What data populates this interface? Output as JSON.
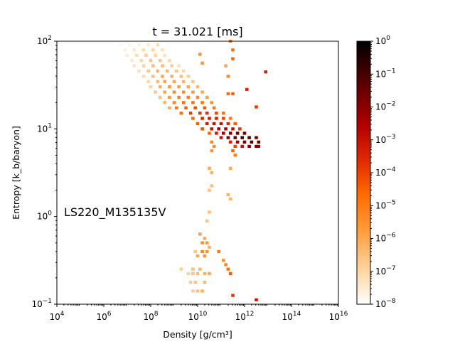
{
  "chart_data": {
    "type": "heatmap",
    "title": "t = 31.021 [ms]",
    "xlabel": "Density [g/cm³]",
    "ylabel": "Entropy [k_b/baryon]",
    "xscale": "log",
    "yscale": "log",
    "xlim_log10": [
      4,
      16
    ],
    "ylim_log10": [
      -1,
      2
    ],
    "x_ticks": [
      {
        "exp": 4,
        "label": "4"
      },
      {
        "exp": 6,
        "label": "6"
      },
      {
        "exp": 8,
        "label": "8"
      },
      {
        "exp": 10,
        "label": "10"
      },
      {
        "exp": 12,
        "label": "12"
      },
      {
        "exp": 14,
        "label": "14"
      },
      {
        "exp": 16,
        "label": "16"
      }
    ],
    "y_ticks": [
      {
        "exp": -1,
        "label": "−1"
      },
      {
        "exp": 0,
        "label": "0"
      },
      {
        "exp": 1,
        "label": "1"
      },
      {
        "exp": 2,
        "label": "2"
      }
    ],
    "annotation": "LS220_M135135V",
    "colorbar": {
      "scale": "log",
      "range_log10": [
        -8,
        0
      ],
      "colormap": [
        "#ffffff",
        "#ffd8a8",
        "#ff9d3a",
        "#ff6a00",
        "#e02800",
        "#b30000",
        "#5a0000",
        "#000000"
      ],
      "ticks": [
        {
          "exp": 0,
          "label": "0"
        },
        {
          "exp": -1,
          "label": "−1"
        },
        {
          "exp": -2,
          "label": "−2"
        },
        {
          "exp": -3,
          "label": "−3"
        },
        {
          "exp": -4,
          "label": "−4"
        },
        {
          "exp": -5,
          "label": "−5"
        },
        {
          "exp": -6,
          "label": "−6"
        },
        {
          "exp": -7,
          "label": "−7"
        },
        {
          "exp": -8,
          "label": "−8"
        }
      ]
    },
    "cells_note": "each cell: [log10 density, log10 entropy, log10 mass fraction]",
    "cells": [
      [
        6.7,
        1.96,
        -7.8
      ],
      [
        7.1,
        1.96,
        -7.7
      ],
      [
        7.5,
        1.96,
        -7.6
      ],
      [
        7.9,
        1.96,
        -7.5
      ],
      [
        8.3,
        1.96,
        -7.1
      ],
      [
        6.9,
        1.9,
        -7.6
      ],
      [
        7.3,
        1.9,
        -7.4
      ],
      [
        7.7,
        1.9,
        -7.1
      ],
      [
        8.1,
        1.9,
        -6.9
      ],
      [
        8.5,
        1.9,
        -7.2
      ],
      [
        7.0,
        1.84,
        -7.5
      ],
      [
        7.4,
        1.84,
        -7.1
      ],
      [
        7.8,
        1.84,
        -6.8
      ],
      [
        8.2,
        1.84,
        -6.9
      ],
      [
        8.6,
        1.84,
        -7.3
      ],
      [
        7.2,
        1.78,
        -7.4
      ],
      [
        7.6,
        1.78,
        -7.0
      ],
      [
        8.0,
        1.78,
        -6.6
      ],
      [
        8.4,
        1.78,
        -6.6
      ],
      [
        8.8,
        1.78,
        -7.0
      ],
      [
        7.3,
        1.72,
        -7.3
      ],
      [
        7.7,
        1.72,
        -6.9
      ],
      [
        8.1,
        1.72,
        -6.4
      ],
      [
        8.5,
        1.72,
        -6.4
      ],
      [
        8.9,
        1.72,
        -6.8
      ],
      [
        9.2,
        1.72,
        -7.2
      ],
      [
        7.5,
        1.66,
        -7.2
      ],
      [
        7.9,
        1.66,
        -6.7
      ],
      [
        8.3,
        1.66,
        -6.2
      ],
      [
        8.7,
        1.66,
        -6.3
      ],
      [
        9.1,
        1.66,
        -6.6
      ],
      [
        9.4,
        1.66,
        -7.0
      ],
      [
        7.7,
        1.6,
        -7.1
      ],
      [
        8.1,
        1.6,
        -6.5
      ],
      [
        8.5,
        1.6,
        -6.0
      ],
      [
        8.9,
        1.6,
        -6.1
      ],
      [
        9.3,
        1.6,
        -6.4
      ],
      [
        9.6,
        1.6,
        -6.8
      ],
      [
        7.9,
        1.54,
        -7.0
      ],
      [
        8.3,
        1.54,
        -6.3
      ],
      [
        8.6,
        1.54,
        -5.8
      ],
      [
        9.0,
        1.54,
        -5.9
      ],
      [
        9.4,
        1.54,
        -6.2
      ],
      [
        9.8,
        1.54,
        -6.6
      ],
      [
        8.0,
        1.48,
        -6.9
      ],
      [
        8.4,
        1.48,
        -6.1
      ],
      [
        8.8,
        1.48,
        -5.6
      ],
      [
        9.2,
        1.48,
        -5.7
      ],
      [
        9.6,
        1.48,
        -6.0
      ],
      [
        10.0,
        1.48,
        -6.3
      ],
      [
        8.2,
        1.42,
        -6.7
      ],
      [
        8.6,
        1.42,
        -5.9
      ],
      [
        9.0,
        1.42,
        -5.4
      ],
      [
        9.4,
        1.42,
        -5.4
      ],
      [
        9.8,
        1.42,
        -5.7
      ],
      [
        10.2,
        1.42,
        -6.0
      ],
      [
        8.4,
        1.36,
        -6.5
      ],
      [
        8.8,
        1.36,
        -5.6
      ],
      [
        9.2,
        1.36,
        -5.1
      ],
      [
        9.6,
        1.36,
        -5.1
      ],
      [
        10.0,
        1.36,
        -5.3
      ],
      [
        10.4,
        1.36,
        -5.8
      ],
      [
        8.6,
        1.3,
        -6.3
      ],
      [
        9.0,
        1.3,
        -5.3
      ],
      [
        9.4,
        1.3,
        -4.8
      ],
      [
        9.8,
        1.3,
        -4.7
      ],
      [
        10.2,
        1.3,
        -4.9
      ],
      [
        10.6,
        1.3,
        -5.4
      ],
      [
        8.8,
        1.24,
        -6.1
      ],
      [
        9.1,
        1.24,
        -5.0
      ],
      [
        9.5,
        1.24,
        -4.5
      ],
      [
        9.9,
        1.24,
        -4.2
      ],
      [
        10.3,
        1.24,
        -4.4
      ],
      [
        10.7,
        1.24,
        -5.0
      ],
      [
        9.3,
        1.18,
        -4.8
      ],
      [
        9.7,
        1.18,
        -4.0
      ],
      [
        10.1,
        1.18,
        -3.8
      ],
      [
        10.4,
        1.18,
        -3.7
      ],
      [
        10.8,
        1.18,
        -4.2
      ],
      [
        11.1,
        1.18,
        -4.9
      ],
      [
        9.8,
        1.12,
        -4.6
      ],
      [
        10.2,
        1.12,
        -3.5
      ],
      [
        10.5,
        1.12,
        -3.3
      ],
      [
        10.8,
        1.12,
        -3.4
      ],
      [
        11.1,
        1.12,
        -4.0
      ],
      [
        11.4,
        1.12,
        -5.0
      ],
      [
        10.0,
        1.06,
        -4.4
      ],
      [
        10.4,
        1.06,
        -3.2
      ],
      [
        10.7,
        1.06,
        -2.9
      ],
      [
        11.0,
        1.06,
        -3.0
      ],
      [
        11.3,
        1.06,
        -3.6
      ],
      [
        11.6,
        1.06,
        -4.4
      ],
      [
        10.2,
        1.0,
        -4.2
      ],
      [
        10.6,
        1.0,
        -3.0
      ],
      [
        10.9,
        1.0,
        -2.5
      ],
      [
        11.2,
        1.0,
        -2.4
      ],
      [
        11.5,
        1.0,
        -3.0
      ],
      [
        11.8,
        1.0,
        -3.8
      ],
      [
        10.5,
        0.95,
        -4.6
      ],
      [
        10.8,
        0.95,
        -3.2
      ],
      [
        11.1,
        0.95,
        -2.2
      ],
      [
        11.4,
        0.95,
        -1.7
      ],
      [
        11.7,
        0.95,
        -1.4
      ],
      [
        12.0,
        0.95,
        -1.6
      ],
      [
        11.0,
        0.9,
        -3.0
      ],
      [
        11.3,
        0.9,
        -1.8
      ],
      [
        11.6,
        0.9,
        -1.2
      ],
      [
        11.9,
        0.9,
        -0.9
      ],
      [
        12.2,
        0.9,
        -1.0
      ],
      [
        12.5,
        0.9,
        -1.7
      ],
      [
        11.4,
        0.85,
        -3.4
      ],
      [
        11.7,
        0.85,
        -2.3
      ],
      [
        12.0,
        0.85,
        -1.6
      ],
      [
        12.3,
        0.85,
        -1.2
      ],
      [
        12.6,
        0.85,
        -1.5
      ],
      [
        11.6,
        0.8,
        -4.0
      ],
      [
        11.9,
        0.8,
        -3.0
      ],
      [
        12.2,
        0.8,
        -2.0
      ],
      [
        12.5,
        0.8,
        -1.7
      ],
      [
        12.6,
        0.8,
        -2.2
      ],
      [
        10.6,
        0.85,
        -5.2
      ],
      [
        10.7,
        0.8,
        -5.4
      ],
      [
        10.6,
        0.75,
        -5.6
      ],
      [
        11.5,
        0.75,
        -4.6
      ],
      [
        11.6,
        0.7,
        -5.0
      ],
      [
        10.5,
        0.55,
        -6.0
      ],
      [
        10.6,
        0.5,
        -6.2
      ],
      [
        10.6,
        0.35,
        -6.4
      ],
      [
        10.5,
        0.3,
        -6.5
      ],
      [
        11.4,
        0.55,
        -6.0
      ],
      [
        11.3,
        0.25,
        -6.2
      ],
      [
        11.4,
        0.2,
        -6.3
      ],
      [
        10.5,
        0.05,
        -6.5
      ],
      [
        10.4,
        -0.05,
        -6.6
      ],
      [
        11.4,
        2.0,
        -5.0
      ],
      [
        11.5,
        1.9,
        -4.7
      ],
      [
        11.5,
        1.8,
        -4.6
      ],
      [
        11.2,
        1.72,
        -5.9
      ],
      [
        11.3,
        1.6,
        -5.3
      ],
      [
        10.1,
        1.85,
        -5.5
      ],
      [
        10.2,
        1.75,
        -5.7
      ],
      [
        11.3,
        1.4,
        -4.8
      ],
      [
        11.5,
        1.4,
        -4.5
      ],
      [
        12.1,
        1.45,
        -3.6
      ],
      [
        12.5,
        1.25,
        -3.9
      ],
      [
        12.9,
        1.65,
        -3.4
      ],
      [
        10.1,
        -0.2,
        -5.8
      ],
      [
        10.3,
        -0.25,
        -6.0
      ],
      [
        10.2,
        -0.3,
        -5.4
      ],
      [
        10.4,
        -0.3,
        -5.6
      ],
      [
        10.5,
        -0.35,
        -6.2
      ],
      [
        9.9,
        -0.4,
        -6.6
      ],
      [
        10.2,
        -0.4,
        -5.2
      ],
      [
        10.4,
        -0.4,
        -5.5
      ],
      [
        10.9,
        -0.4,
        -5.0
      ],
      [
        10.0,
        -0.45,
        -6.0
      ],
      [
        10.3,
        -0.45,
        -5.6
      ],
      [
        11.1,
        -0.5,
        -5.4
      ],
      [
        11.2,
        -0.55,
        -5.2
      ],
      [
        11.3,
        -0.6,
        -4.8
      ],
      [
        9.3,
        -0.6,
        -6.8
      ],
      [
        9.8,
        -0.6,
        -6.5
      ],
      [
        10.1,
        -0.6,
        -6.3
      ],
      [
        11.4,
        -0.65,
        -4.4
      ],
      [
        9.6,
        -0.65,
        -6.9
      ],
      [
        9.8,
        -0.65,
        -6.6
      ],
      [
        10.0,
        -0.65,
        -6.4
      ],
      [
        10.3,
        -0.65,
        -6.1
      ],
      [
        10.5,
        -0.65,
        -6.0
      ],
      [
        9.7,
        -0.75,
        -6.7
      ],
      [
        9.9,
        -0.75,
        -6.6
      ],
      [
        10.3,
        -0.75,
        -6.3
      ],
      [
        9.8,
        -0.85,
        -6.8
      ],
      [
        10.0,
        -0.85,
        -6.5
      ],
      [
        10.2,
        -0.85,
        -6.2
      ],
      [
        11.5,
        -0.9,
        -3.8
      ],
      [
        12.5,
        -0.95,
        -3.2
      ]
    ]
  }
}
